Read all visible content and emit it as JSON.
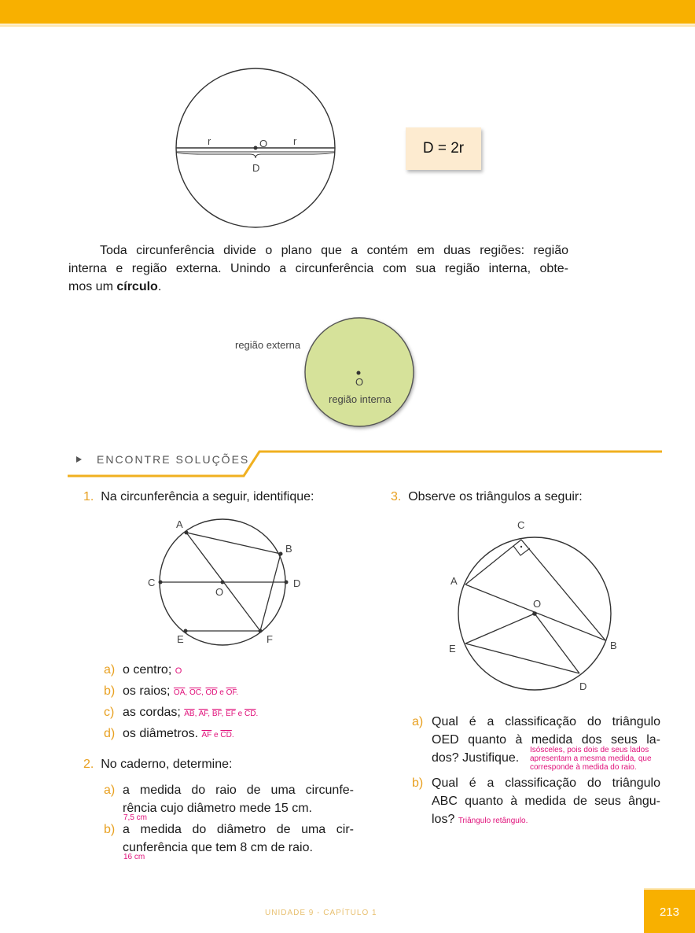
{
  "fig1": {
    "r_left": "r",
    "center": "O",
    "r_right": "r",
    "diameter": "D",
    "formula": "D = 2r"
  },
  "paragraph": {
    "line1": "Toda circunferência divide o plano que a contém em duas regiões: região",
    "line2": "interna e região externa. Unindo a circunferência com sua região interna, obte-",
    "line3_start": "mos um ",
    "line3_bold": "círculo",
    "line3_end": "."
  },
  "fig2": {
    "external": "região externa",
    "center": "O",
    "internal": "região interna"
  },
  "section": {
    "title": "ENCONTRE SOLUÇÕES"
  },
  "q1": {
    "number": "1.",
    "text": "Na circunferência a seguir, identifique:",
    "labels": {
      "A": "A",
      "B": "B",
      "C": "C",
      "D": "D",
      "O": "O",
      "E": "E",
      "F": "F"
    },
    "items": [
      {
        "letter": "a)",
        "text": "o centro;",
        "answer": "O"
      },
      {
        "letter": "b)",
        "text": "os raios;",
        "answer_segments": [
          "OA",
          "OC",
          "OD",
          "OF"
        ],
        "sep1": ", ",
        "sep_last": " e ",
        "end": "."
      },
      {
        "letter": "c)",
        "text": "as cordas;",
        "answer_segments": [
          "AB",
          "AF",
          "BF",
          "EF",
          "CD"
        ],
        "sep1": ", ",
        "sep_last": " e ",
        "end": "."
      },
      {
        "letter": "d)",
        "text": "os diâmetros.",
        "answer_segments": [
          "AF",
          "CD"
        ],
        "sep_last": " e ",
        "end": "."
      }
    ]
  },
  "q2": {
    "number": "2.",
    "text": "No caderno, determine:",
    "items": [
      {
        "letter": "a)",
        "line1": "a medida do raio de uma circunfe-",
        "line2": "rência cujo diâmetro mede 15 cm.",
        "answer": "7,5 cm"
      },
      {
        "letter": "b)",
        "line1": "a medida do diâmetro de uma cir-",
        "line2": "cunferência que tem 8 cm de raio.",
        "answer": "16 cm"
      }
    ]
  },
  "q3": {
    "number": "3.",
    "text": "Observe os triângulos a seguir:",
    "labels": {
      "C": "C",
      "A": "A",
      "O": "O",
      "E": "E",
      "B": "B",
      "D": "D"
    },
    "items": [
      {
        "letter": "a)",
        "line1": "Qual é a classificação do triângulo",
        "line2": "OED quanto à medida dos seus la-",
        "line3": "dos? Justifique.",
        "answer_lines": [
          "Isósceles, pois dois de seus lados",
          "apresentam a mesma medida, que",
          "corresponde à medida do raio."
        ]
      },
      {
        "letter": "b)",
        "line1": "Qual é a classificação do triângulo",
        "line2": "ABC quanto à medida de seus ângu-",
        "line3": "los?",
        "answer": "Triângulo retângulo."
      }
    ]
  },
  "footer": {
    "text": "UNIDADE 9  -  CAPÍTULO 1",
    "page": "213"
  },
  "colors": {
    "accent": "#f8b000",
    "answer": "#e0107a",
    "disk": "#d6e29a"
  }
}
